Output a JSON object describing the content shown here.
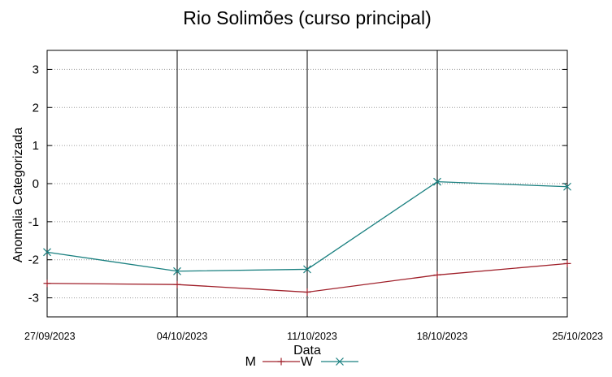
{
  "chart_data": {
    "type": "line",
    "title": "Rio Solimões (curso principal)",
    "xlabel": "Data",
    "ylabel": "Anomalia Categorizada",
    "categories": [
      "27/09/2023",
      "04/10/2023",
      "11/10/2023",
      "18/10/2023",
      "25/10/2023"
    ],
    "ylim": [
      -3.5,
      3.5
    ],
    "yticks": [
      "3",
      "2",
      "1",
      "0",
      "-1",
      "-2",
      "-3"
    ],
    "ytick_values": [
      3,
      2,
      1,
      0,
      -1,
      -2,
      -3
    ],
    "grid": "horizontal dotted",
    "legend_position": "bottom-center",
    "series": [
      {
        "name": "M",
        "values": [
          -2.62,
          -2.65,
          -2.85,
          -2.4,
          -2.1
        ],
        "color": "#a0202a",
        "marker": "plus"
      },
      {
        "name": "W",
        "values": [
          -1.8,
          -2.3,
          -2.25,
          0.05,
          -0.08
        ],
        "color": "#1a8080",
        "marker": "cross"
      }
    ]
  }
}
